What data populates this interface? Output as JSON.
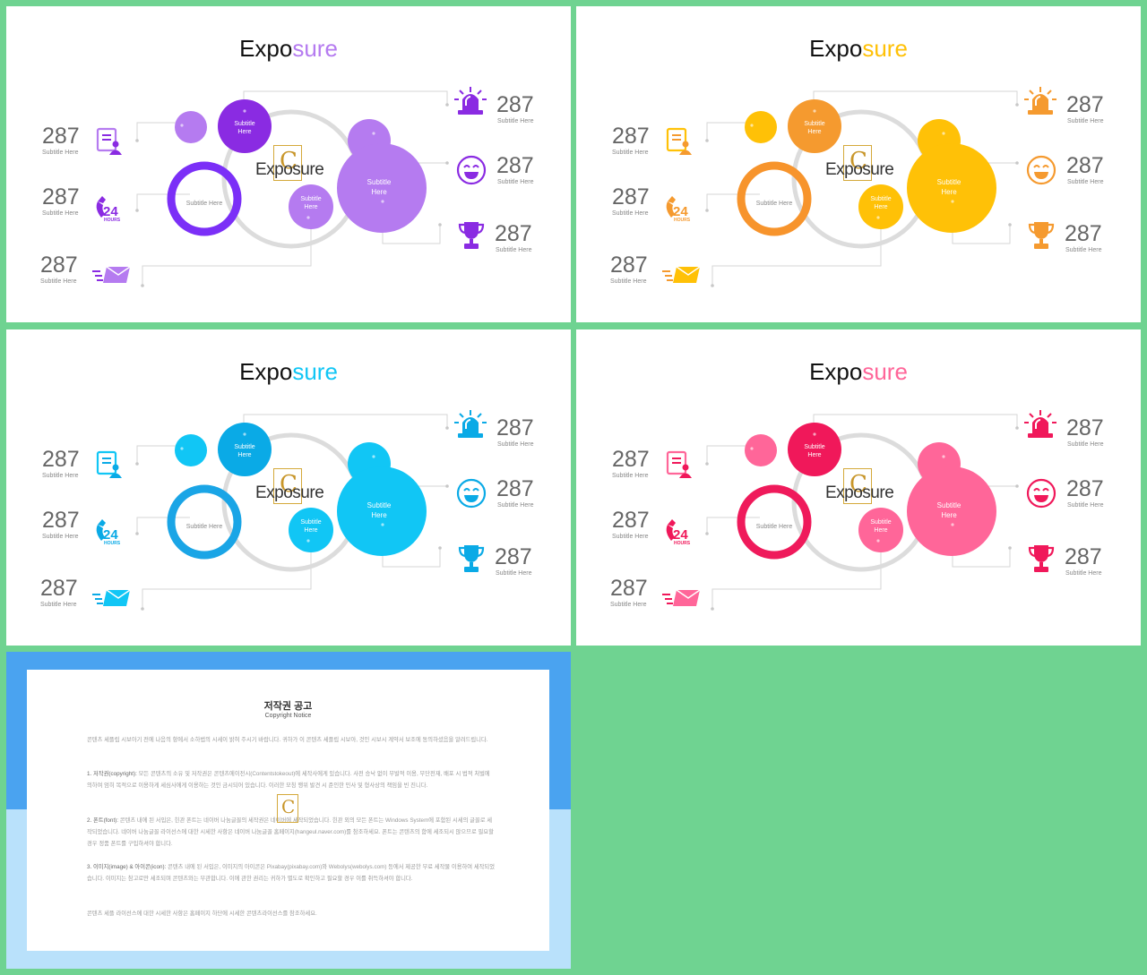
{
  "slides": [
    {
      "accent": "#8a2be2",
      "light": "#b57bf0",
      "ring": "#7b2ff7"
    },
    {
      "accent": "#f59a2f",
      "light": "#ffc107",
      "ring": "#f7942c"
    },
    {
      "accent": "#0aaae6",
      "light": "#11c6f5",
      "ring": "#1aa5e6"
    },
    {
      "accent": "#f0185a",
      "light": "#ff6699",
      "ring": "#ef1a5b"
    }
  ],
  "slide_content": {
    "title_a": "Expo",
    "title_b": "sure",
    "center_text": "Exposure",
    "logo_letter": "C",
    "bubble_subtitle_1": "Subtitle",
    "bubble_subtitle_2": "Here",
    "ring_label": "Subtitle Here",
    "stats": [
      {
        "value": "287",
        "label": "Subtitle Here",
        "icon": "document-user-icon"
      },
      {
        "value": "287",
        "label": "Subtitle Here",
        "icon": "phone-24-hours-icon"
      },
      {
        "value": "287",
        "label": "Subtitle Here",
        "icon": "mail-envelope-icon"
      },
      {
        "value": "287",
        "label": "Subtitle Here",
        "icon": "siren-alarm-icon"
      },
      {
        "value": "287",
        "label": "Subtitle Here",
        "icon": "smiley-face-icon"
      },
      {
        "value": "287",
        "label": "Subtitle Here",
        "icon": "trophy-icon"
      }
    ],
    "hours_text": "24",
    "hours_sub": "HOURS"
  },
  "notice": {
    "title": "저작권 공고",
    "subtitle": "Copyright Notice",
    "p1": "콘텐츠 세플립 시보아기 전에 나음의 항에서 소하법의 시세이 밝혀 주시기 바랍니다. 귀하가 이 콘텐츠 세플립 시보아, 것인 시보시 계약서 보조에 동의하셨음을 알려드립니다.",
    "p2_head": "1. 저작권(copyright):",
    "p2": " 모든 콘텐츠의 소유 및 저작권은 콘텐츠에이전시(Contentstokeout)에 세작사에게 있습니다. 사전 승낙 없이 무발적 이용, 무단전재, 배포 시 법적 처벌에 의하여 엄히 목적으로 이용하게 세심사에게 이용하는 것인 금시되어 있습니다. 이러한 모칭 행위 발견 시 준인한 민사 및 형사상의 책임을 빈 진니다.",
    "p3_head": "2. 폰트(font):",
    "p3": " 콘텐츠 내에 된 서입은, 힌관 폰트는 네이버 나눔글꼴의 세작권은 네이버에 세작되었습니다. 힌관 외의 모든 폰트는 Windows System에 포함된 시세의 글꼴로 세작되었습니다. 네이버 나눔글꼴 라이선스에 대한 시세한 사항은 네이버 나눔글꼴 홈페이지(hangeul.naver.com)를 참조하세요. 폰트는 콘텐츠의 함에 세조되시 않으므로 필요할 경우 정품 폰트를 구입하셔야 합니다.",
    "p4_head": "3. 이미지(image) & 아이콘(icon):",
    "p4": " 콘텐츠 내에 된 서입은, 이미지의 아이콘은 Pixabay(pixabay.com)와 Webolys(webolys.com) 등에서 제공한 무료 세작물 이용하여 세작되었습니다. 이미지는 참고로만 세조되며 콘텐츠와는 무관합니다. 이에 관한 권리는 귀하가 별도로 확인하고 필요할 경우 이를 취득하셔야 합니다.",
    "p5": "콘텐츠 세플 라이선스에 대한 시세한 사항은 홈페이지 하단에 시세한 콘텐츠라이선스를 참조하세요."
  }
}
